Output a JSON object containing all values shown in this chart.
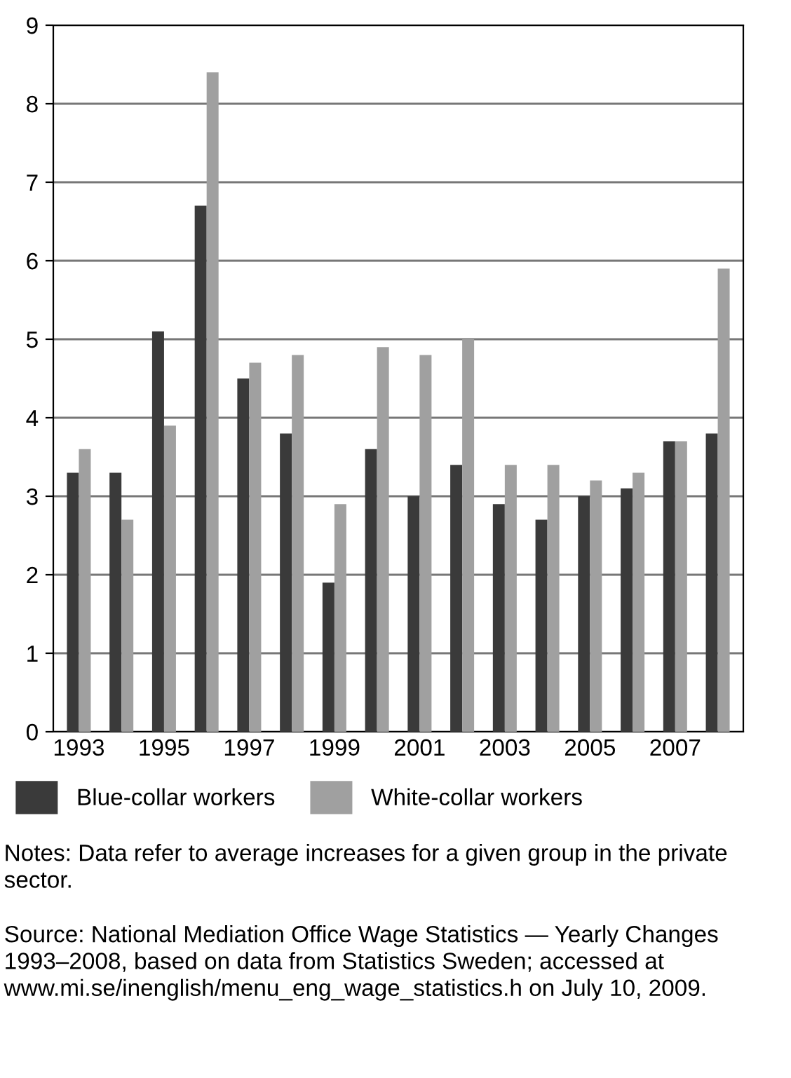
{
  "chart_data": {
    "type": "bar",
    "categories": [
      "1993",
      null,
      "1995",
      null,
      "1997",
      null,
      "1999",
      null,
      "2001",
      null,
      "2003",
      null,
      "2005",
      null,
      "2007",
      null
    ],
    "series": [
      {
        "name": "Blue-collar workers",
        "color": "#3a3a3a",
        "values": [
          3.3,
          3.3,
          5.1,
          6.7,
          4.5,
          3.8,
          1.9,
          3.6,
          3.0,
          3.4,
          2.9,
          2.7,
          3.0,
          3.1,
          3.7,
          3.8
        ]
      },
      {
        "name": "White-collar workers",
        "color": "#a0a0a0",
        "values": [
          3.6,
          2.7,
          3.9,
          8.4,
          4.7,
          4.8,
          2.9,
          4.9,
          4.8,
          5.0,
          3.4,
          3.4,
          3.2,
          3.3,
          3.7,
          5.9
        ]
      }
    ],
    "ylim": [
      0,
      9
    ],
    "yticks": [
      0,
      1,
      2,
      3,
      4,
      5,
      6,
      7,
      8,
      9
    ],
    "grid": "y",
    "legend": "bottom",
    "annotations": [
      "Notes: Data refer to average increases for a given group in the private sector.",
      "Source: National Mediation Office Wage Statistics — Yearly Changes 1993–2008, based on data from Statistics Sweden; accessed at www.mi.se/inenglish/menu_eng_wage_statistics.h on July 10, 2009."
    ]
  }
}
